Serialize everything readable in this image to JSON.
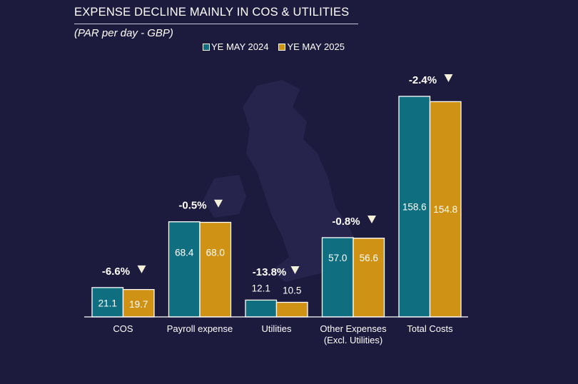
{
  "chart_data": {
    "type": "bar",
    "title": "EXPENSE DECLINE MAINLY IN COS & UTILITIES",
    "subtitle": "(PAR per day - GBP)",
    "categories": [
      "COS",
      "Payroll expense",
      "Utilities",
      "Other Expenses (Excl. Utilities)",
      "Total Costs"
    ],
    "series": [
      {
        "name": "YE MAY 2024",
        "color": "#0f6f80",
        "values": [
          21.1,
          68.4,
          12.1,
          57.0,
          158.6
        ]
      },
      {
        "name": "YE MAY 2025",
        "color": "#d09214",
        "values": [
          19.7,
          68.0,
          10.5,
          56.6,
          154.8
        ]
      }
    ],
    "data_labels": [
      [
        "21.1",
        "68.4",
        "12.1",
        "57.0",
        "158.6"
      ],
      [
        "19.7",
        "68.0",
        "10.5",
        "56.6",
        "154.8"
      ]
    ],
    "changes": [
      "-6.6%",
      "-0.5%",
      "-13.8%",
      "-0.8%",
      "-2.4%"
    ],
    "change_icon": "down-triangle-icon",
    "legend_position": "top-right",
    "grid": false,
    "ylim": [
      0,
      160
    ],
    "background_color": "#1c1a3d"
  }
}
